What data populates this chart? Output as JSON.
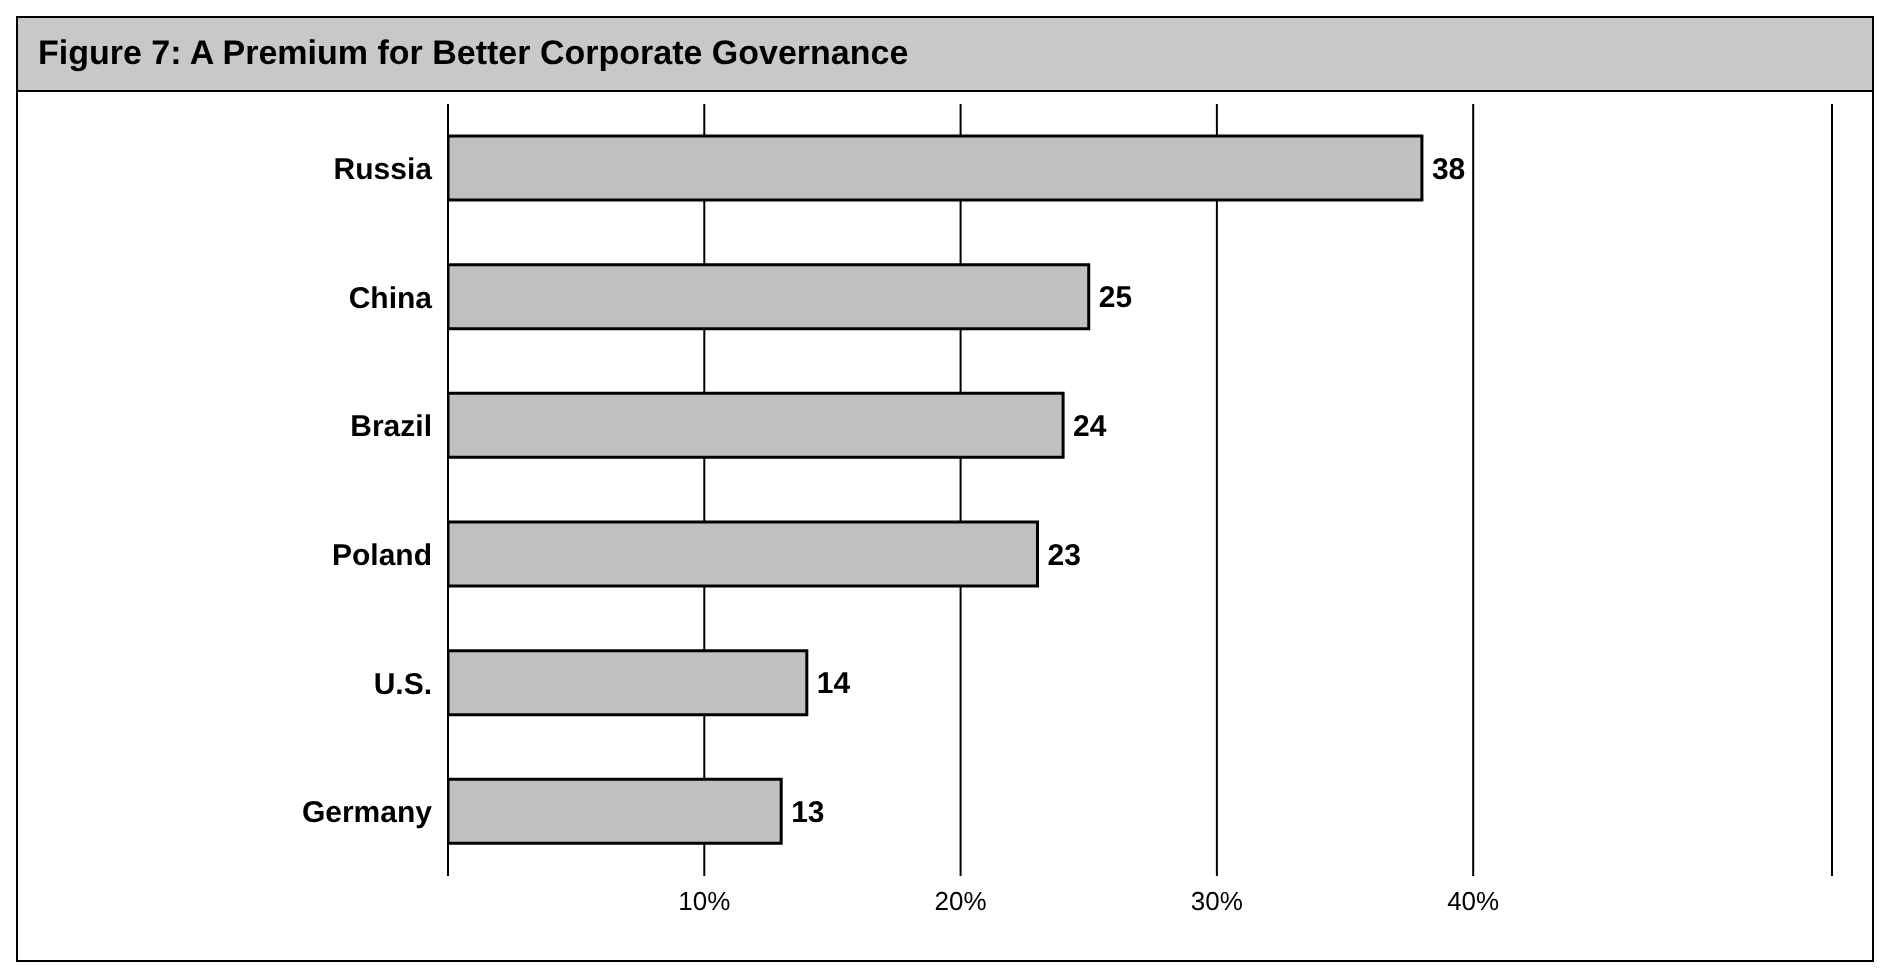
{
  "chart_data": {
    "type": "bar",
    "orientation": "horizontal",
    "title": "Figure 7: A Premium for Better Corporate Governance",
    "categories": [
      "Russia",
      "China",
      "Brazil",
      "Poland",
      "U.S.",
      "Germany"
    ],
    "values": [
      38,
      25,
      24,
      23,
      14,
      13
    ],
    "color": "#c0c0c0",
    "data_labels": true,
    "xlim": [
      0,
      54
    ],
    "xticks": [
      {
        "value": 10,
        "label": "10%"
      },
      {
        "value": 20,
        "label": "20%"
      },
      {
        "value": 30,
        "label": "30%"
      },
      {
        "value": 40,
        "label": "40%"
      }
    ],
    "grid": "x",
    "legend": false
  }
}
